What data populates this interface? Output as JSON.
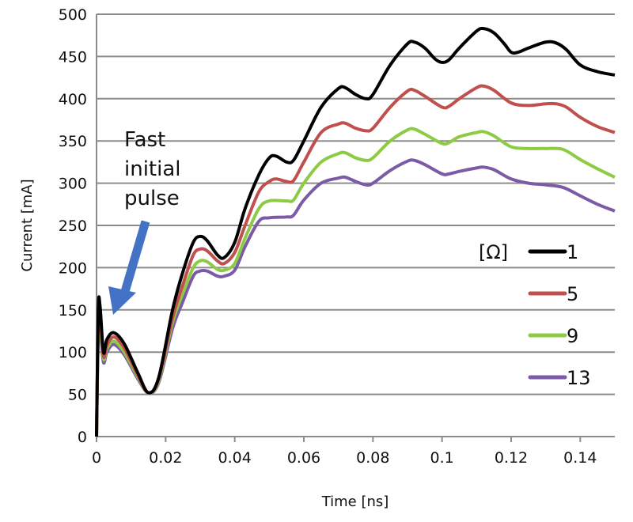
{
  "chart_data": {
    "type": "line",
    "title": "",
    "xlabel": "Time [ns]",
    "ylabel": "Current [mA]",
    "xlim": [
      0,
      0.15
    ],
    "ylim": [
      0,
      500
    ],
    "xticks": [
      "0",
      "0.02",
      "0.04",
      "0.06",
      "0.08",
      "0.1",
      "0.12",
      "0.14"
    ],
    "xtick_values": [
      0,
      0.02,
      0.04,
      0.06,
      0.08,
      0.1,
      0.12,
      0.14
    ],
    "yticks": [
      "0",
      "50",
      "100",
      "150",
      "200",
      "250",
      "300",
      "350",
      "400",
      "450",
      "500"
    ],
    "ytick_values": [
      0,
      50,
      100,
      150,
      200,
      250,
      300,
      350,
      400,
      450,
      500
    ],
    "grid": "horizontal",
    "legend": {
      "title": "[Ω]",
      "placement": "right"
    },
    "annotation": {
      "lines": [
        "Fast",
        "initial",
        "pulse"
      ],
      "arrow_color": "#4472C4"
    },
    "series": [
      {
        "name": "1",
        "color": "#000000",
        "points": [
          [
            0,
            0
          ],
          [
            0.0005,
            150
          ],
          [
            0.001,
            155
          ],
          [
            0.002,
            100
          ],
          [
            0.003,
            115
          ],
          [
            0.005,
            123
          ],
          [
            0.008,
            110
          ],
          [
            0.012,
            75
          ],
          [
            0.015,
            52
          ],
          [
            0.018,
            70
          ],
          [
            0.022,
            150
          ],
          [
            0.025,
            195
          ],
          [
            0.028,
            230
          ],
          [
            0.03,
            237
          ],
          [
            0.032,
            232
          ],
          [
            0.035,
            215
          ],
          [
            0.037,
            212
          ],
          [
            0.04,
            230
          ],
          [
            0.043,
            270
          ],
          [
            0.047,
            310
          ],
          [
            0.05,
            330
          ],
          [
            0.052,
            332
          ],
          [
            0.055,
            325
          ],
          [
            0.057,
            327
          ],
          [
            0.06,
            350
          ],
          [
            0.065,
            390
          ],
          [
            0.07,
            412
          ],
          [
            0.072,
            413
          ],
          [
            0.075,
            405
          ],
          [
            0.078,
            400
          ],
          [
            0.08,
            405
          ],
          [
            0.085,
            440
          ],
          [
            0.09,
            465
          ],
          [
            0.092,
            467
          ],
          [
            0.095,
            460
          ],
          [
            0.098,
            447
          ],
          [
            0.1,
            443
          ],
          [
            0.102,
            446
          ],
          [
            0.105,
            460
          ],
          [
            0.11,
            480
          ],
          [
            0.112,
            483
          ],
          [
            0.115,
            478
          ],
          [
            0.118,
            465
          ],
          [
            0.12,
            455
          ],
          [
            0.122,
            455
          ],
          [
            0.125,
            460
          ],
          [
            0.13,
            467
          ],
          [
            0.133,
            466
          ],
          [
            0.136,
            458
          ],
          [
            0.14,
            440
          ],
          [
            0.145,
            432
          ],
          [
            0.15,
            428
          ]
        ]
      },
      {
        "name": "5",
        "color": "#C0504D",
        "points": [
          [
            0,
            0
          ],
          [
            0.0005,
            140
          ],
          [
            0.001,
            145
          ],
          [
            0.002,
            95
          ],
          [
            0.003,
            108
          ],
          [
            0.005,
            118
          ],
          [
            0.008,
            105
          ],
          [
            0.012,
            72
          ],
          [
            0.015,
            52
          ],
          [
            0.018,
            68
          ],
          [
            0.022,
            140
          ],
          [
            0.025,
            180
          ],
          [
            0.028,
            215
          ],
          [
            0.03,
            222
          ],
          [
            0.032,
            220
          ],
          [
            0.035,
            208
          ],
          [
            0.037,
            205
          ],
          [
            0.04,
            218
          ],
          [
            0.043,
            250
          ],
          [
            0.047,
            290
          ],
          [
            0.05,
            302
          ],
          [
            0.052,
            305
          ],
          [
            0.055,
            302
          ],
          [
            0.057,
            303
          ],
          [
            0.06,
            325
          ],
          [
            0.065,
            360
          ],
          [
            0.07,
            370
          ],
          [
            0.072,
            371
          ],
          [
            0.075,
            365
          ],
          [
            0.078,
            362
          ],
          [
            0.08,
            365
          ],
          [
            0.085,
            390
          ],
          [
            0.09,
            409
          ],
          [
            0.092,
            410
          ],
          [
            0.095,
            403
          ],
          [
            0.1,
            390
          ],
          [
            0.102,
            391
          ],
          [
            0.105,
            400
          ],
          [
            0.11,
            413
          ],
          [
            0.112,
            415
          ],
          [
            0.115,
            410
          ],
          [
            0.12,
            395
          ],
          [
            0.125,
            392
          ],
          [
            0.13,
            394
          ],
          [
            0.133,
            394
          ],
          [
            0.136,
            390
          ],
          [
            0.14,
            378
          ],
          [
            0.145,
            367
          ],
          [
            0.15,
            360
          ]
        ]
      },
      {
        "name": "9",
        "color": "#8DCB45",
        "points": [
          [
            0,
            0
          ],
          [
            0.0005,
            132
          ],
          [
            0.001,
            135
          ],
          [
            0.002,
            92
          ],
          [
            0.003,
            104
          ],
          [
            0.005,
            113
          ],
          [
            0.008,
            100
          ],
          [
            0.012,
            70
          ],
          [
            0.015,
            52
          ],
          [
            0.018,
            66
          ],
          [
            0.022,
            135
          ],
          [
            0.025,
            170
          ],
          [
            0.028,
            200
          ],
          [
            0.03,
            208
          ],
          [
            0.032,
            207
          ],
          [
            0.035,
            198
          ],
          [
            0.037,
            197
          ],
          [
            0.04,
            205
          ],
          [
            0.043,
            235
          ],
          [
            0.047,
            270
          ],
          [
            0.05,
            279
          ],
          [
            0.055,
            279
          ],
          [
            0.057,
            280
          ],
          [
            0.06,
            300
          ],
          [
            0.065,
            325
          ],
          [
            0.07,
            335
          ],
          [
            0.072,
            336
          ],
          [
            0.075,
            330
          ],
          [
            0.078,
            327
          ],
          [
            0.08,
            330
          ],
          [
            0.085,
            350
          ],
          [
            0.09,
            363
          ],
          [
            0.092,
            364
          ],
          [
            0.095,
            358
          ],
          [
            0.1,
            347
          ],
          [
            0.102,
            348
          ],
          [
            0.105,
            355
          ],
          [
            0.11,
            360
          ],
          [
            0.112,
            361
          ],
          [
            0.115,
            356
          ],
          [
            0.12,
            343
          ],
          [
            0.125,
            341
          ],
          [
            0.13,
            341
          ],
          [
            0.135,
            340
          ],
          [
            0.14,
            328
          ],
          [
            0.145,
            317
          ],
          [
            0.15,
            307
          ]
        ]
      },
      {
        "name": "13",
        "color": "#7B5AA6",
        "points": [
          [
            0,
            0
          ],
          [
            0.0005,
            125
          ],
          [
            0.001,
            128
          ],
          [
            0.002,
            88
          ],
          [
            0.003,
            100
          ],
          [
            0.005,
            109
          ],
          [
            0.008,
            97
          ],
          [
            0.012,
            68
          ],
          [
            0.015,
            52
          ],
          [
            0.018,
            64
          ],
          [
            0.022,
            128
          ],
          [
            0.025,
            160
          ],
          [
            0.028,
            190
          ],
          [
            0.03,
            196
          ],
          [
            0.032,
            196
          ],
          [
            0.035,
            190
          ],
          [
            0.037,
            190
          ],
          [
            0.04,
            197
          ],
          [
            0.043,
            225
          ],
          [
            0.047,
            255
          ],
          [
            0.05,
            259
          ],
          [
            0.055,
            260
          ],
          [
            0.057,
            262
          ],
          [
            0.06,
            280
          ],
          [
            0.065,
            300
          ],
          [
            0.07,
            306
          ],
          [
            0.072,
            307
          ],
          [
            0.075,
            302
          ],
          [
            0.078,
            298
          ],
          [
            0.08,
            300
          ],
          [
            0.085,
            315
          ],
          [
            0.09,
            326
          ],
          [
            0.092,
            327
          ],
          [
            0.095,
            322
          ],
          [
            0.1,
            311
          ],
          [
            0.102,
            311
          ],
          [
            0.105,
            314
          ],
          [
            0.11,
            318
          ],
          [
            0.112,
            319
          ],
          [
            0.115,
            316
          ],
          [
            0.12,
            305
          ],
          [
            0.125,
            300
          ],
          [
            0.13,
            298
          ],
          [
            0.135,
            295
          ],
          [
            0.14,
            285
          ],
          [
            0.145,
            275
          ],
          [
            0.15,
            267
          ]
        ]
      }
    ]
  }
}
